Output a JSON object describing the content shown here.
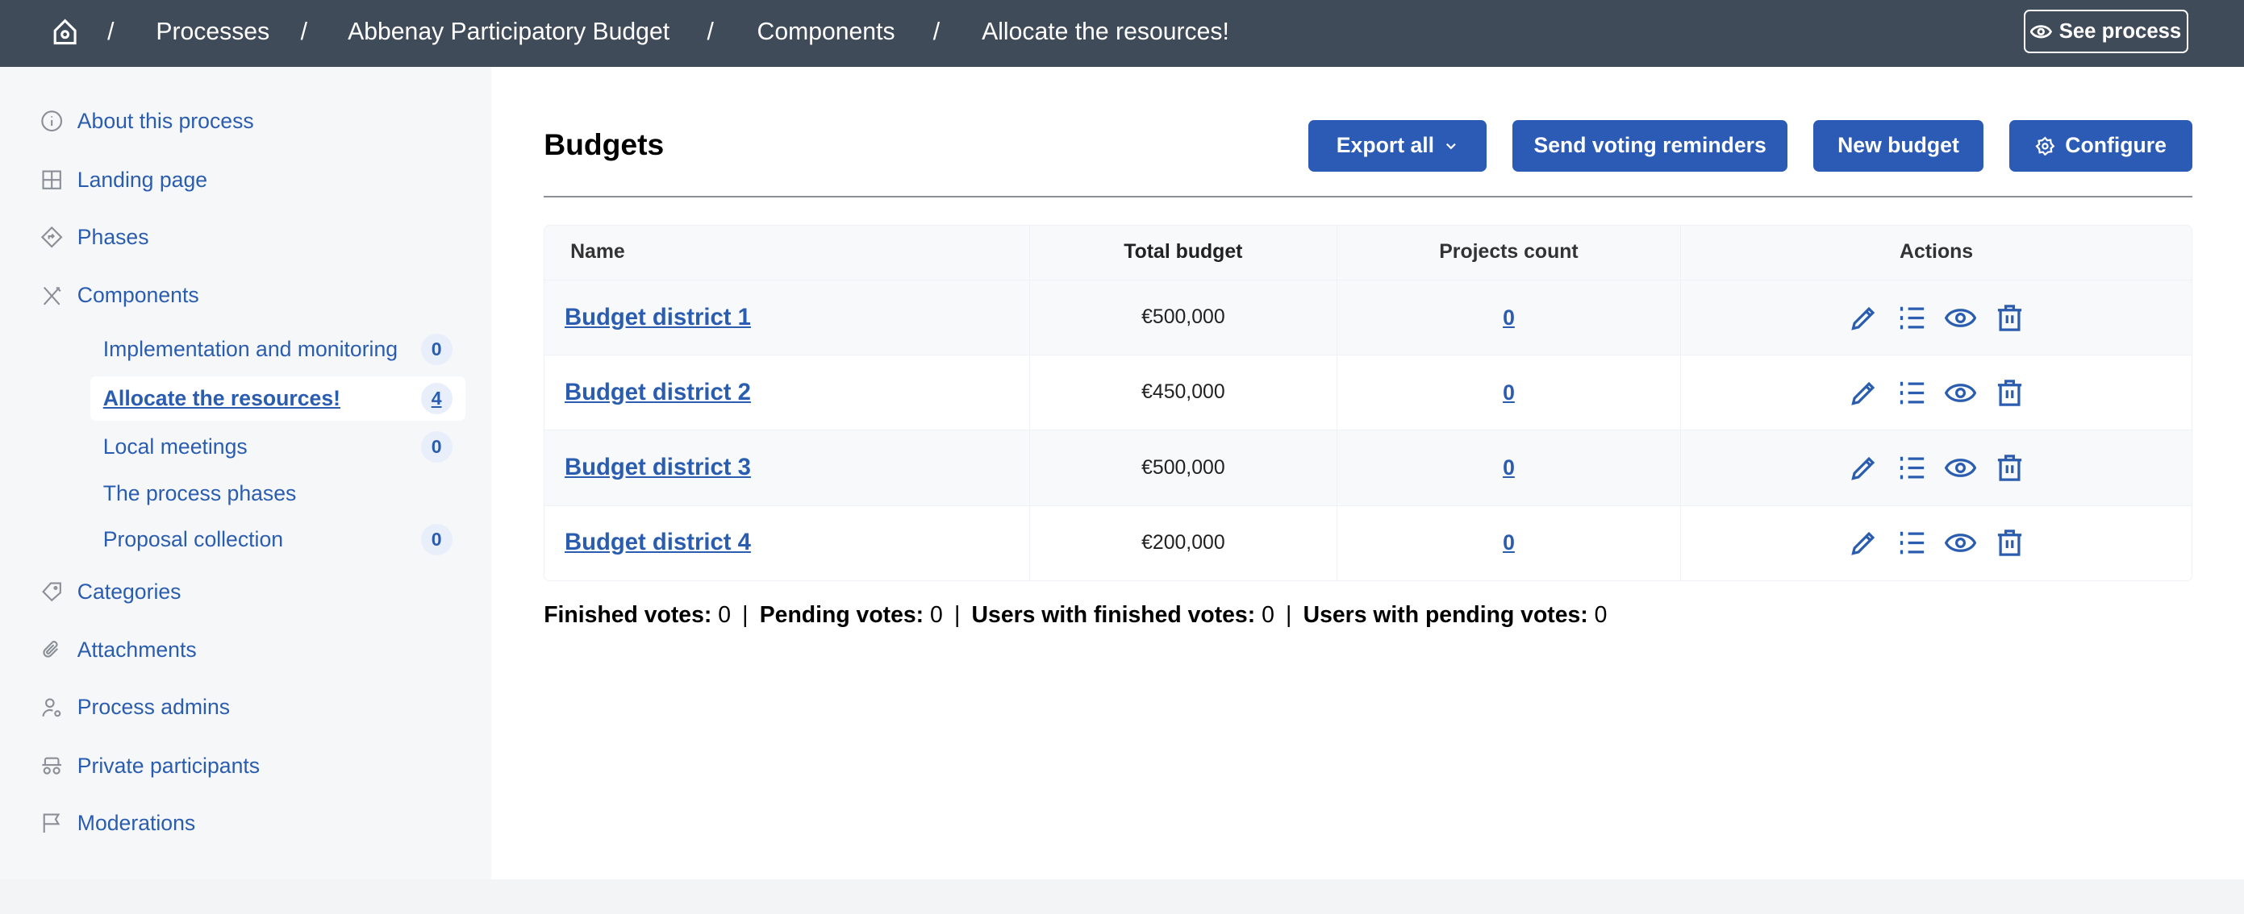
{
  "header": {
    "breadcrumb": [
      "Processes",
      "Abbenay Participatory Budget",
      "Components",
      "Allocate the resources!"
    ],
    "separator": "/",
    "see_process": "See process"
  },
  "sidebar": {
    "items": [
      {
        "label": "About this process",
        "icon": "info-icon"
      },
      {
        "label": "Landing page",
        "icon": "layout-icon"
      },
      {
        "label": "Phases",
        "icon": "signpost-icon"
      },
      {
        "label": "Components",
        "icon": "tools-icon"
      },
      {
        "label": "Categories",
        "icon": "tag-icon"
      },
      {
        "label": "Attachments",
        "icon": "paperclip-icon"
      },
      {
        "label": "Process admins",
        "icon": "user-settings-icon"
      },
      {
        "label": "Private participants",
        "icon": "spy-icon"
      },
      {
        "label": "Moderations",
        "icon": "flag-icon"
      }
    ],
    "components": [
      {
        "label": "Implementation and monitoring",
        "badge": "0"
      },
      {
        "label": "Allocate the resources!",
        "badge": "4",
        "active": true
      },
      {
        "label": "Local meetings",
        "badge": "0"
      },
      {
        "label": "The process phases",
        "badge": ""
      },
      {
        "label": "Proposal collection",
        "badge": "0"
      }
    ]
  },
  "main": {
    "title": "Budgets",
    "buttons": {
      "export": "Export all",
      "reminders": "Send voting reminders",
      "new": "New budget",
      "configure": "Configure"
    },
    "table": {
      "headers": [
        "Name",
        "Total budget",
        "Projects count",
        "Actions"
      ],
      "rows": [
        {
          "name": "Budget district 1",
          "total": "€500,000",
          "projects": "0"
        },
        {
          "name": "Budget district 2",
          "total": "€450,000",
          "projects": "0"
        },
        {
          "name": "Budget district 3",
          "total": "€500,000",
          "projects": "0"
        },
        {
          "name": "Budget district 4",
          "total": "€200,000",
          "projects": "0"
        }
      ]
    },
    "summary": [
      {
        "label": "Finished votes:",
        "value": "0"
      },
      {
        "label": "Pending votes:",
        "value": "0"
      },
      {
        "label": "Users with finished votes:",
        "value": "0"
      },
      {
        "label": "Users with pending votes:",
        "value": "0"
      }
    ],
    "summary_separator": "|"
  },
  "colors": {
    "header_bg": "#404b5a",
    "primary": "#2c5bb6",
    "link": "#2a5db0",
    "sidebar_bg": "#f6f7f9"
  }
}
